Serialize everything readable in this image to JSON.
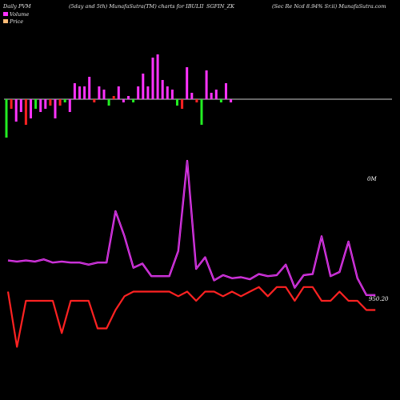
{
  "header": {
    "left": "Daily PVM",
    "center_left": "(5day and 5th) MunafaSutra(TM) charts for IBULII",
    "center": "SGFIN_ZK",
    "right": "(Sec Re   Ncd 8.94% Sr.ii) MunafaSutra.com"
  },
  "legend": {
    "items": [
      {
        "label": "Volume",
        "color": "#ff33ff"
      },
      {
        "label": "Price",
        "color": "#ffbb77"
      }
    ]
  },
  "colors": {
    "up": "#ff33ff",
    "down": "#ff2222",
    "green": "#22ee22",
    "line_volume": "#ff33ff",
    "line_volume_inner": "#8833aa",
    "line_price": "#ff2222",
    "baseline": "#cccccc"
  },
  "chart_data": [
    {
      "type": "bar",
      "name": "volume-bars",
      "x": [
        1,
        2,
        3,
        4,
        5,
        6,
        7,
        8,
        9,
        10,
        11,
        12,
        13,
        14,
        15,
        16,
        17,
        18,
        19,
        20,
        21,
        22,
        23,
        24,
        25,
        26,
        27,
        28,
        29,
        30,
        31,
        32,
        33,
        34,
        35,
        36,
        37,
        38,
        39,
        40,
        41,
        42,
        43,
        44,
        45,
        46,
        47
      ],
      "values": [
        -12,
        -3,
        -7,
        -4,
        -8,
        -6,
        -3,
        -4,
        -3,
        -2,
        -6,
        -2,
        -1,
        -4,
        5,
        4,
        4,
        7,
        -1,
        4,
        3,
        -2,
        1,
        4,
        -1,
        1,
        -1,
        4,
        8,
        4,
        13,
        14,
        6,
        4,
        3,
        -2,
        -3,
        10,
        2,
        -1,
        -8,
        9,
        2,
        3,
        -1,
        5,
        -1
      ],
      "colors": [
        "green",
        "red",
        "magenta",
        "magenta",
        "red",
        "magenta",
        "green",
        "magenta",
        "magenta",
        "red",
        "magenta",
        "red",
        "green",
        "magenta",
        "magenta",
        "magenta",
        "magenta",
        "magenta",
        "red",
        "magenta",
        "magenta",
        "green",
        "red",
        "magenta",
        "magenta",
        "magenta",
        "green",
        "magenta",
        "magenta",
        "magenta",
        "magenta",
        "magenta",
        "magenta",
        "magenta",
        "magenta",
        "green",
        "red",
        "magenta",
        "magenta",
        "red",
        "green",
        "magenta",
        "magenta",
        "magenta",
        "green",
        "magenta",
        "magenta"
      ]
    },
    {
      "type": "line",
      "name": "volume-line",
      "x": [
        1,
        2,
        3,
        4,
        5,
        6,
        7,
        8,
        9,
        10,
        11,
        12,
        13,
        14,
        15,
        16,
        17,
        18,
        19,
        20,
        21,
        22,
        23,
        24,
        25,
        26,
        27,
        28,
        29,
        30,
        31,
        32,
        33,
        34,
        35,
        36,
        37,
        38,
        39,
        40,
        41,
        42
      ],
      "values": [
        9.5,
        9.4,
        9.5,
        9.4,
        9.6,
        9.3,
        9.4,
        9.3,
        9.3,
        9.1,
        9.3,
        9.3,
        14.2,
        11.8,
        8.8,
        9.2,
        8.0,
        8.0,
        8.0,
        10.4,
        19.0,
        8.7,
        9.8,
        7.6,
        8.1,
        7.8,
        7.9,
        7.7,
        8.2,
        8.0,
        8.1,
        9.1,
        6.9,
        8.1,
        8.2,
        11.8,
        8.0,
        8.4,
        11.3,
        7.8,
        6.2,
        6.2
      ],
      "label_values": [
        "0M",
        "950.20"
      ]
    },
    {
      "type": "line",
      "name": "price-line",
      "x": [
        1,
        2,
        3,
        4,
        5,
        6,
        7,
        8,
        9,
        10,
        11,
        12,
        13,
        14,
        15,
        16,
        17,
        18,
        19,
        20,
        21,
        22,
        23,
        24,
        25,
        26,
        27,
        28,
        29,
        30,
        31,
        32,
        33,
        34,
        35,
        36,
        37,
        38,
        39,
        40,
        41,
        42
      ],
      "values": [
        950.2,
        949.6,
        950.1,
        950.1,
        950.1,
        950.1,
        949.75,
        950.1,
        950.1,
        950.1,
        949.8,
        949.8,
        950.0,
        950.15,
        950.2,
        950.2,
        950.2,
        950.2,
        950.2,
        950.15,
        950.2,
        950.1,
        950.2,
        950.2,
        950.15,
        950.2,
        950.15,
        950.2,
        950.25,
        950.15,
        950.25,
        950.25,
        950.1,
        950.25,
        950.25,
        950.1,
        950.1,
        950.2,
        950.1,
        950.1,
        950.0,
        950.0
      ]
    }
  ]
}
